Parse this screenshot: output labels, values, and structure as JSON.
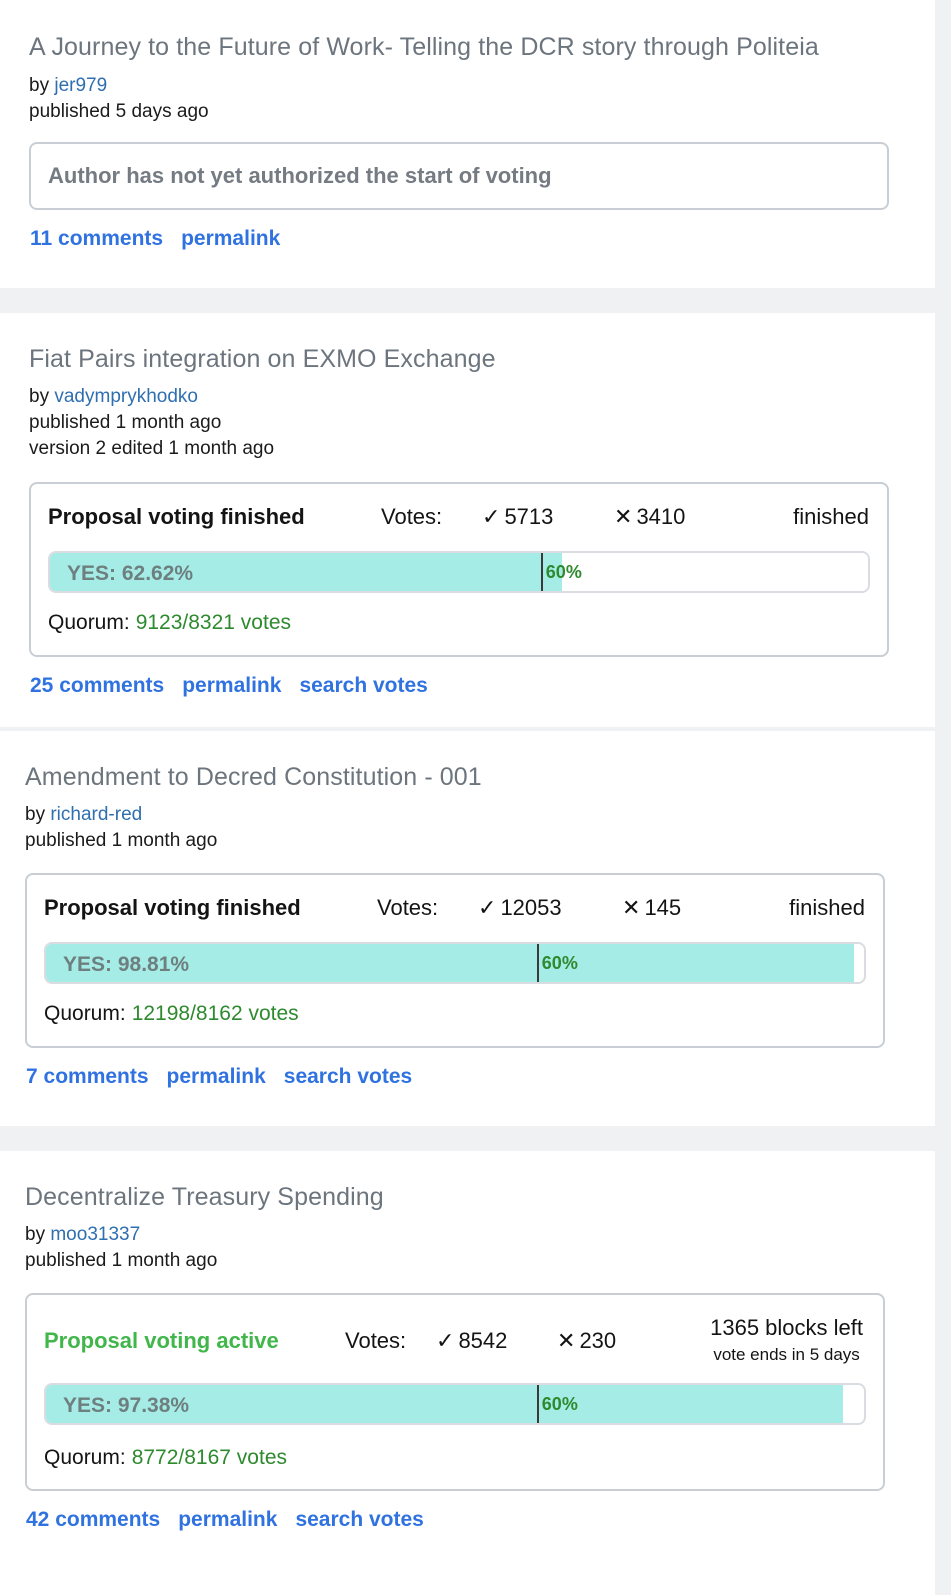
{
  "proposals": [
    {
      "title": "A Journey to the Future of Work- Telling the DCR story through Politeia",
      "by_label": "by",
      "author": "jer979",
      "published": "published 5 days ago",
      "notice": "Author has not yet authorized the start of voting",
      "links": {
        "comments": "11 comments",
        "permalink": "permalink"
      }
    },
    {
      "title": "Fiat Pairs integration on EXMO Exchange",
      "by_label": "by",
      "author": "vadymprykhodko",
      "published": "published 1 month ago",
      "edited": "version 2 edited 1 month ago",
      "status": "Proposal voting finished",
      "votes_label": "Votes:",
      "yes_symbol": "✓",
      "yes_votes": "5713",
      "no_symbol": "✕",
      "no_votes": "3410",
      "state": "finished",
      "yes_label": "YES: 62.62%",
      "yes_fraction": 0.6262,
      "pass_threshold": 0.6,
      "pass_label": "60%",
      "quorum_label": "Quorum:",
      "quorum_value": "9123/8321 votes",
      "links": {
        "comments": "25 comments",
        "permalink": "permalink",
        "search": "search votes"
      }
    },
    {
      "title": "Amendment to Decred Constitution - 001",
      "by_label": "by",
      "author": "richard-red",
      "published": "published 1 month ago",
      "status": "Proposal voting finished",
      "votes_label": "Votes:",
      "yes_symbol": "✓",
      "yes_votes": "12053",
      "no_symbol": "✕",
      "no_votes": "145",
      "state": "finished",
      "yes_label": "YES: 98.81%",
      "yes_fraction": 0.9881,
      "pass_threshold": 0.6,
      "pass_label": "60%",
      "quorum_label": "Quorum:",
      "quorum_value": "12198/8162 votes",
      "links": {
        "comments": "7 comments",
        "permalink": "permalink",
        "search": "search votes"
      }
    },
    {
      "title": "Decentralize Treasury Spending",
      "by_label": "by",
      "author": "moo31337",
      "published": "published 1 month ago",
      "status": "Proposal voting active",
      "votes_label": "Votes:",
      "yes_symbol": "✓",
      "yes_votes": "8542",
      "no_symbol": "✕",
      "no_votes": "230",
      "blocks_left": "1365 blocks left",
      "vote_ends": "vote ends in 5 days",
      "yes_label": "YES: 97.38%",
      "yes_fraction": 0.9738,
      "pass_threshold": 0.6,
      "pass_label": "60%",
      "quorum_label": "Quorum:",
      "quorum_value": "8772/8167 votes",
      "links": {
        "comments": "42 comments",
        "permalink": "permalink",
        "search": "search votes"
      }
    }
  ],
  "colors": {
    "link": "#2f72e0",
    "author": "#2f6fb0",
    "active_status": "#41b64b",
    "quorum": "#2e8a2e",
    "bar_fill": "#a6ece6"
  }
}
